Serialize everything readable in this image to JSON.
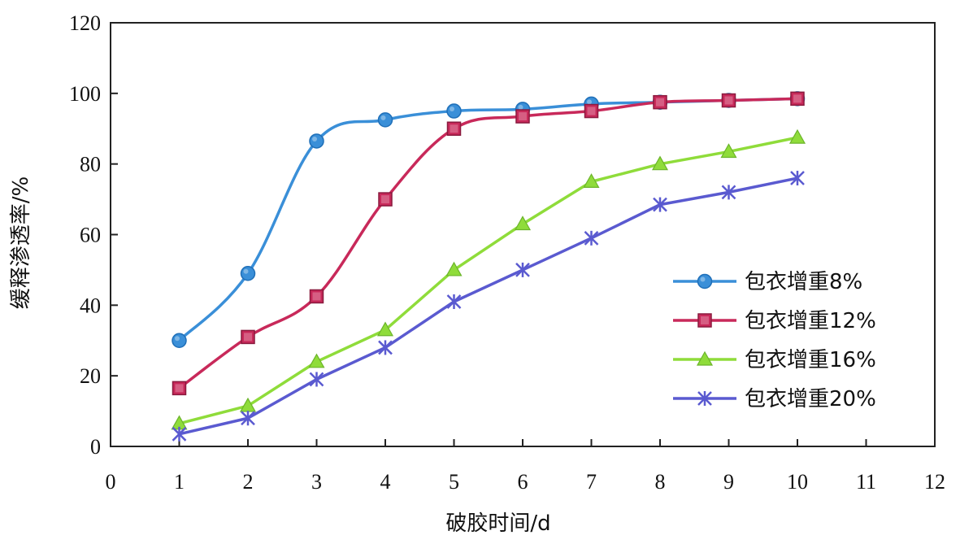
{
  "chart_data": {
    "type": "line",
    "xlabel": "破胶时间/d",
    "ylabel": "缓释渗透率/%",
    "xlim": [
      0,
      12
    ],
    "ylim": [
      0,
      120
    ],
    "xticks": [
      "0",
      "1",
      "2",
      "3",
      "4",
      "5",
      "6",
      "7",
      "8",
      "9",
      "10",
      "11",
      "12"
    ],
    "yticks": [
      "0",
      "20",
      "40",
      "60",
      "80",
      "100",
      "120"
    ],
    "grid": false,
    "legend_position": "right",
    "x": [
      1,
      2,
      3,
      4,
      5,
      6,
      7,
      8,
      9,
      10
    ],
    "series": [
      {
        "name": "包衣增重8%",
        "marker": "circle",
        "color": "#3a8fd8",
        "smooth": true,
        "values": [
          30,
          49,
          86.5,
          92.5,
          95,
          95.5,
          97,
          97.5,
          98,
          98.5
        ]
      },
      {
        "name": "包衣增重12%",
        "marker": "square",
        "color": "#c8295a",
        "smooth": true,
        "values": [
          16.5,
          31,
          42.5,
          70,
          90,
          93.5,
          95,
          97.5,
          98,
          98.5
        ]
      },
      {
        "name": "包衣增重16%",
        "marker": "triangle",
        "color": "#8fdc3a",
        "smooth": false,
        "values": [
          6.5,
          11.5,
          24,
          33,
          50,
          63,
          75,
          80,
          83.5,
          87.5
        ]
      },
      {
        "name": "包衣增重20%",
        "marker": "asterisk",
        "color": "#5a5ad0",
        "smooth": false,
        "values": [
          3.5,
          8,
          19,
          28,
          41,
          50,
          59,
          68.5,
          72,
          76
        ]
      }
    ]
  }
}
